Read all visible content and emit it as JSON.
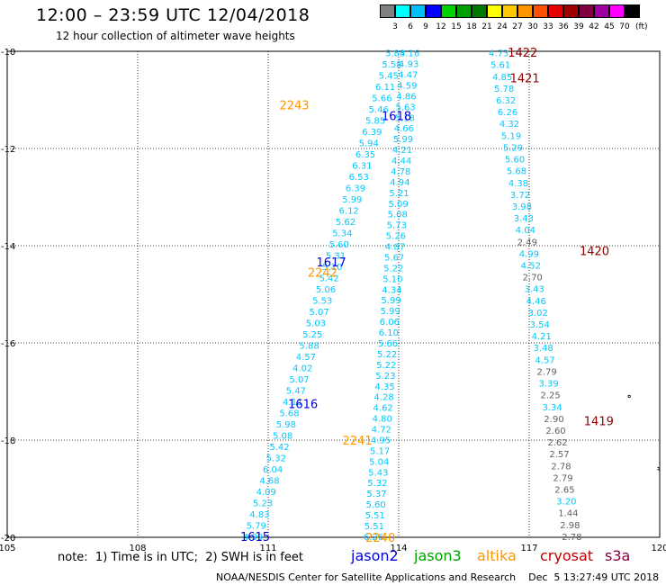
{
  "header": {
    "title": "12:00 – 23:59 UTC 12/04/2018",
    "subtitle": "12 hour collection of altimeter wave heights"
  },
  "legend": {
    "unit": "(ft)",
    "colors": [
      "#808080",
      "#00ffff",
      "#00bfff",
      "#0000ff",
      "#00d200",
      "#00a000",
      "#007800",
      "#ffff00",
      "#ffc800",
      "#ff9600",
      "#ff5000",
      "#e60000",
      "#a00000",
      "#800040",
      "#a000a0",
      "#ff00ff",
      "#000000"
    ],
    "labels": [
      "3",
      "6",
      "9",
      "12",
      "15",
      "18",
      "21",
      "24",
      "27",
      "30",
      "33",
      "36",
      "39",
      "42",
      "45",
      "70"
    ]
  },
  "map": {
    "lon_ticks": [
      "105",
      "108",
      "111",
      "114",
      "117",
      "120"
    ],
    "lat_ticks": [
      "-10",
      "-12",
      "-14",
      "-16",
      "-18",
      "-20"
    ],
    "lon_range": [
      105,
      120
    ],
    "lat_range": [
      -10,
      -20
    ],
    "coast": [
      [
        119.95,
        -18.56
      ],
      [
        120,
        -18.58
      ],
      [
        120,
        -18.62
      ],
      [
        119.95,
        -18.6
      ]
    ],
    "islet": [
      [
        119.3,
        -17.1
      ]
    ],
    "passes": [
      {
        "satellite": "jason2",
        "label": "1618",
        "color": "#00c8ff",
        "label_color": "#0000e0",
        "start": [
          113.92,
          -10.03
        ],
        "end": [
          110.65,
          -19.98
        ],
        "values": [
          "5.83",
          "5.58",
          "5.45",
          "6.11",
          "5.66",
          "5.46",
          "5.85",
          "6.39",
          "5.94",
          "6.35",
          "6.31",
          "6.53",
          "6.39",
          "5.99",
          "6.12",
          "5.62",
          "5.34",
          "5.60",
          "5.31",
          "5.10",
          "5.42",
          "5.06",
          "5.53",
          "5.07",
          "5.03",
          "5.25",
          "5.88",
          "4.57",
          "4.02",
          "5.07",
          "5.47",
          "4.11",
          "5.68",
          "5.98",
          "5.08",
          "5.42",
          "5.32",
          "6.04",
          "4.68",
          "4.09",
          "5.23",
          "4.83",
          "5.79",
          "4.99"
        ],
        "value_colors": {},
        "labels": [
          {
            "text": "1618",
            "lon": 113.95,
            "lat": -11.32
          },
          {
            "text": "1617",
            "lon": 112.45,
            "lat": -14.33
          },
          {
            "text": "1616",
            "lon": 111.8,
            "lat": -17.25
          },
          {
            "text": "1615",
            "lon": 110.7,
            "lat": -19.98
          }
        ]
      },
      {
        "satellite": "jason2",
        "label": "1617",
        "color": "#00c8ff",
        "label_color": "#0000e0",
        "start": [
          114.25,
          -10.03
        ],
        "end": [
          113.42,
          -19.98
        ],
        "values": [
          "4.16",
          "4.93",
          "4.47",
          "4.59",
          "4.86",
          "5.63",
          "5.18",
          "4.66",
          "5.99",
          "4.21",
          "4.44",
          "4.78",
          "4.94",
          "5.21",
          "5.09",
          "5.08",
          "5.73",
          "5.26",
          "4.87",
          "5.67",
          "5.22",
          "5.10",
          "4.34",
          "5.99",
          "5.99",
          "6.06",
          "6.10",
          "5.66",
          "5.22",
          "5.22",
          "5.23",
          "4.35",
          "4.28",
          "4.62",
          "4.80",
          "4.72",
          "4.95",
          "5.17",
          "5.04",
          "5.43",
          "5.32",
          "5.37",
          "5.60",
          "5.51",
          "5.51",
          "6.26"
        ],
        "value_colors": {},
        "labels": []
      },
      {
        "satellite": "altika",
        "label": "2243",
        "color": "#00c8ff",
        "label_color": "#ff9600",
        "start": [
          116.3,
          -10.03
        ],
        "end": [
          117.98,
          -19.98
        ],
        "values": [
          "4.73",
          "5.61",
          "4.85",
          "5.78",
          "6.32",
          "6.26",
          "4.32",
          "5.19",
          "5.29",
          "5.60",
          "5.68",
          "4.38",
          "3.72",
          "3.98",
          "3.43",
          "4.04",
          "2.49",
          "4.99",
          "4.52",
          "2.70",
          "3.43",
          "4.46",
          "3.02",
          "3.54",
          "4.21",
          "3.48",
          "4.57",
          "2.79",
          "3.39",
          "2.25",
          "3.34",
          "2.90",
          "2.60",
          "2.62",
          "2.57",
          "2.78",
          "2.79",
          "2.65",
          "3.20",
          "1.44",
          "2.98",
          "2.78"
        ],
        "value_colors": {
          "2.49": "#606060",
          "2.70": "#606060",
          "2.79": "#606060",
          "2.25": "#606060",
          "2.90": "#606060",
          "2.60": "#606060",
          "2.62": "#606060",
          "2.57": "#606060",
          "2.78": "#606060",
          "2.65": "#606060",
          "1.44": "#606060",
          "2.98": "#606060"
        },
        "labels": [
          {
            "text": "2243",
            "lon": 111.6,
            "lat": -11.1
          },
          {
            "text": "2242",
            "lon": 112.25,
            "lat": -14.55
          },
          {
            "text": "2241",
            "lon": 113.05,
            "lat": -18.0
          },
          {
            "text": "2240",
            "lon": 113.58,
            "lat": -20.0
          }
        ]
      }
    ],
    "cryosat_labels": [
      {
        "text": "1422",
        "lon": 116.85,
        "lat": -10.02
      },
      {
        "text": "1421",
        "lon": 116.9,
        "lat": -10.55
      },
      {
        "text": "1420",
        "lon": 118.5,
        "lat": -14.1
      },
      {
        "text": "1419",
        "lon": 118.6,
        "lat": -17.6
      }
    ]
  },
  "notes": {
    "note": "note:  1) Time is in UTC;  2) SWH is in feet",
    "satellites": [
      {
        "name": "jason2",
        "color": "#0000e0"
      },
      {
        "name": "jason3",
        "color": "#00a000"
      },
      {
        "name": "altika",
        "color": "#ff9600"
      },
      {
        "name": "cryosat",
        "color": "#c00000"
      },
      {
        "name": "s3a",
        "color": "#800040"
      }
    ],
    "footer": "NOAA/NESDIS Center for Satellite Applications and Research    Dec  5 13:27:49 UTC 2018"
  }
}
